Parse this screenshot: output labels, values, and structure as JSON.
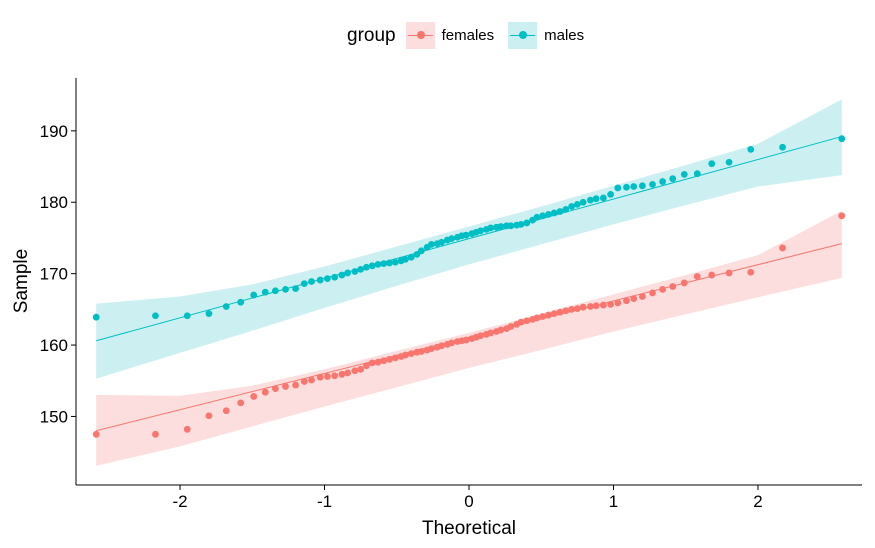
{
  "colors": {
    "females": "#F8766D",
    "males": "#00BFC4",
    "females_band": "#FBDEDD",
    "males_band": "#CCF0F2",
    "axis": "#000000"
  },
  "legend": {
    "title": "group",
    "position": "top"
  },
  "chart_data": {
    "type": "scatter",
    "title": "",
    "xlabel": "Theoretical",
    "ylabel": "Sample",
    "xlim": [
      -2.72,
      2.72
    ],
    "ylim": [
      140.4,
      197.4
    ],
    "xticks": [
      -2,
      -1,
      0,
      1,
      2
    ],
    "xtick_labels": [
      "-2",
      "-1",
      "0",
      "1",
      "2"
    ],
    "yticks": [
      150,
      160,
      170,
      180,
      190
    ],
    "ytick_labels": [
      "150",
      "160",
      "170",
      "180",
      "190"
    ],
    "grid": false,
    "series": [
      {
        "name": "females",
        "points": [
          [
            -2.58,
            147.5
          ],
          [
            -2.17,
            147.5
          ],
          [
            -1.95,
            148.2
          ],
          [
            -1.8,
            150.1
          ],
          [
            -1.68,
            150.8
          ],
          [
            -1.58,
            151.9
          ],
          [
            -1.49,
            152.8
          ],
          [
            -1.41,
            153.4
          ],
          [
            -1.34,
            153.9
          ],
          [
            -1.27,
            154.2
          ],
          [
            -1.2,
            154.4
          ],
          [
            -1.14,
            154.9
          ],
          [
            -1.09,
            155.1
          ],
          [
            -1.03,
            155.5
          ],
          [
            -0.98,
            155.6
          ],
          [
            -0.93,
            155.7
          ],
          [
            -0.88,
            155.9
          ],
          [
            -0.84,
            156.1
          ],
          [
            -0.79,
            156.4
          ],
          [
            -0.75,
            156.6
          ],
          [
            -0.71,
            157.1
          ],
          [
            -0.67,
            157.5
          ],
          [
            -0.63,
            157.6
          ],
          [
            -0.59,
            157.8
          ],
          [
            -0.55,
            158.0
          ],
          [
            -0.51,
            158.2
          ],
          [
            -0.47,
            158.4
          ],
          [
            -0.44,
            158.6
          ],
          [
            -0.4,
            158.8
          ],
          [
            -0.36,
            159.0
          ],
          [
            -0.33,
            159.1
          ],
          [
            -0.29,
            159.3
          ],
          [
            -0.26,
            159.5
          ],
          [
            -0.22,
            159.7
          ],
          [
            -0.19,
            159.9
          ],
          [
            -0.15,
            160.1
          ],
          [
            -0.12,
            160.3
          ],
          [
            -0.08,
            160.5
          ],
          [
            -0.05,
            160.6
          ],
          [
            -0.02,
            160.7
          ],
          [
            0.02,
            160.9
          ],
          [
            0.05,
            161.1
          ],
          [
            0.08,
            161.3
          ],
          [
            0.12,
            161.5
          ],
          [
            0.15,
            161.7
          ],
          [
            0.19,
            161.9
          ],
          [
            0.22,
            162.1
          ],
          [
            0.26,
            162.3
          ],
          [
            0.29,
            162.6
          ],
          [
            0.33,
            162.9
          ],
          [
            0.36,
            163.2
          ],
          [
            0.4,
            163.4
          ],
          [
            0.44,
            163.6
          ],
          [
            0.47,
            163.8
          ],
          [
            0.51,
            164.0
          ],
          [
            0.55,
            164.2
          ],
          [
            0.59,
            164.4
          ],
          [
            0.63,
            164.6
          ],
          [
            0.67,
            164.8
          ],
          [
            0.71,
            165.0
          ],
          [
            0.75,
            165.1
          ],
          [
            0.79,
            165.3
          ],
          [
            0.84,
            165.4
          ],
          [
            0.88,
            165.5
          ],
          [
            0.93,
            165.6
          ],
          [
            0.98,
            165.7
          ],
          [
            1.03,
            165.9
          ],
          [
            1.09,
            166.2
          ],
          [
            1.14,
            166.5
          ],
          [
            1.2,
            166.8
          ],
          [
            1.27,
            167.3
          ],
          [
            1.34,
            167.8
          ],
          [
            1.41,
            168.2
          ],
          [
            1.49,
            168.7
          ],
          [
            1.58,
            169.6
          ],
          [
            1.68,
            169.8
          ],
          [
            1.8,
            170.1
          ],
          [
            1.95,
            170.2
          ],
          [
            2.17,
            173.6
          ],
          [
            2.58,
            178.1
          ]
        ]
      },
      {
        "name": "males",
        "points": [
          [
            -2.58,
            163.9
          ],
          [
            -2.17,
            164.1
          ],
          [
            -1.95,
            164.1
          ],
          [
            -1.8,
            164.4
          ],
          [
            -1.68,
            165.4
          ],
          [
            -1.58,
            166.0
          ],
          [
            -1.49,
            167.0
          ],
          [
            -1.41,
            167.4
          ],
          [
            -1.34,
            167.6
          ],
          [
            -1.27,
            167.8
          ],
          [
            -1.2,
            167.9
          ],
          [
            -1.14,
            168.6
          ],
          [
            -1.09,
            168.9
          ],
          [
            -1.03,
            169.1
          ],
          [
            -0.98,
            169.3
          ],
          [
            -0.93,
            169.5
          ],
          [
            -0.88,
            169.8
          ],
          [
            -0.84,
            170.1
          ],
          [
            -0.79,
            170.3
          ],
          [
            -0.75,
            170.6
          ],
          [
            -0.71,
            170.9
          ],
          [
            -0.67,
            171.1
          ],
          [
            -0.63,
            171.3
          ],
          [
            -0.59,
            171.4
          ],
          [
            -0.55,
            171.5
          ],
          [
            -0.51,
            171.6
          ],
          [
            -0.47,
            171.8
          ],
          [
            -0.44,
            172.0
          ],
          [
            -0.4,
            172.3
          ],
          [
            -0.36,
            172.7
          ],
          [
            -0.33,
            173.2
          ],
          [
            -0.29,
            173.7
          ],
          [
            -0.26,
            174.1
          ],
          [
            -0.22,
            174.2
          ],
          [
            -0.19,
            174.4
          ],
          [
            -0.15,
            174.7
          ],
          [
            -0.12,
            174.9
          ],
          [
            -0.08,
            175.1
          ],
          [
            -0.05,
            175.3
          ],
          [
            -0.02,
            175.4
          ],
          [
            0.02,
            175.6
          ],
          [
            0.05,
            175.8
          ],
          [
            0.08,
            176.0
          ],
          [
            0.12,
            176.2
          ],
          [
            0.15,
            176.4
          ],
          [
            0.19,
            176.5
          ],
          [
            0.22,
            176.6
          ],
          [
            0.26,
            176.7
          ],
          [
            0.29,
            176.7
          ],
          [
            0.33,
            176.8
          ],
          [
            0.36,
            176.9
          ],
          [
            0.4,
            177.1
          ],
          [
            0.44,
            177.5
          ],
          [
            0.47,
            177.9
          ],
          [
            0.51,
            178.1
          ],
          [
            0.55,
            178.3
          ],
          [
            0.59,
            178.5
          ],
          [
            0.63,
            178.7
          ],
          [
            0.67,
            179.0
          ],
          [
            0.71,
            179.4
          ],
          [
            0.75,
            179.7
          ],
          [
            0.79,
            180.0
          ],
          [
            0.84,
            180.3
          ],
          [
            0.88,
            180.5
          ],
          [
            0.93,
            180.6
          ],
          [
            0.98,
            181.1
          ],
          [
            1.03,
            182.0
          ],
          [
            1.09,
            182.1
          ],
          [
            1.14,
            182.2
          ],
          [
            1.2,
            182.3
          ],
          [
            1.27,
            182.5
          ],
          [
            1.34,
            182.9
          ],
          [
            1.41,
            183.3
          ],
          [
            1.49,
            183.9
          ],
          [
            1.58,
            184.0
          ],
          [
            1.68,
            185.4
          ],
          [
            1.8,
            185.6
          ],
          [
            1.95,
            187.4
          ],
          [
            2.17,
            187.7
          ],
          [
            2.58,
            188.9
          ]
        ]
      }
    ],
    "reference_lines": [
      {
        "series": "females",
        "x": [
          -2.58,
          2.58
        ],
        "y": [
          148.0,
          174.2
        ]
      },
      {
        "series": "males",
        "x": [
          -2.58,
          2.58
        ],
        "y": [
          160.6,
          189.2
        ]
      }
    ],
    "confidence_bands": [
      {
        "series": "females",
        "x": [
          -2.58,
          -2.0,
          -1.5,
          -1.0,
          -0.5,
          0.0,
          0.5,
          1.0,
          1.5,
          2.0,
          2.58
        ],
        "lower": [
          143.1,
          145.8,
          148.6,
          151.4,
          154.1,
          156.8,
          159.3,
          161.9,
          164.3,
          166.7,
          169.4
        ],
        "upper": [
          153.0,
          152.9,
          154.3,
          156.6,
          159.2,
          161.7,
          164.4,
          167.1,
          169.8,
          172.6,
          178.8
        ]
      },
      {
        "series": "males",
        "x": [
          -2.58,
          -2.0,
          -1.5,
          -1.0,
          -0.5,
          0.0,
          0.5,
          1.0,
          1.5,
          2.0,
          2.58
        ],
        "lower": [
          155.3,
          158.9,
          162.0,
          165.2,
          168.3,
          171.3,
          174.1,
          176.9,
          179.6,
          182.2,
          183.8
        ],
        "upper": [
          165.8,
          166.8,
          168.5,
          171.0,
          173.8,
          176.6,
          179.4,
          182.3,
          185.2,
          188.2,
          194.4
        ]
      }
    ]
  }
}
